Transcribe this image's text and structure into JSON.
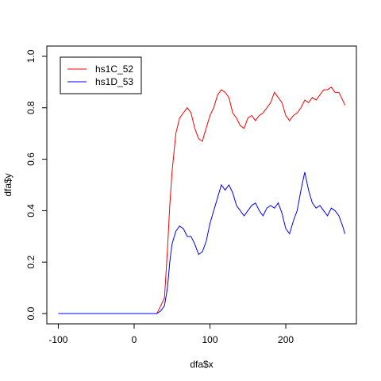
{
  "chart_data": {
    "type": "line",
    "x_label": "dfa$x",
    "y_label": "dfa$y",
    "x": [
      -100,
      30,
      35,
      40,
      44,
      47,
      50,
      55,
      60,
      65,
      70,
      75,
      80,
      85,
      90,
      95,
      100,
      105,
      110,
      115,
      120,
      125,
      130,
      135,
      140,
      145,
      150,
      155,
      160,
      165,
      170,
      175,
      180,
      185,
      190,
      195,
      200,
      205,
      210,
      215,
      220,
      225,
      230,
      235,
      240,
      245,
      250,
      255,
      260,
      265,
      270,
      275,
      278
    ],
    "series": [
      {
        "name": "hs1C_52",
        "color": "#ff0000",
        "values": [
          0,
          0,
          0.03,
          0.06,
          0.25,
          0.42,
          0.55,
          0.7,
          0.76,
          0.78,
          0.8,
          0.78,
          0.72,
          0.68,
          0.67,
          0.72,
          0.77,
          0.8,
          0.85,
          0.87,
          0.86,
          0.84,
          0.78,
          0.76,
          0.73,
          0.72,
          0.76,
          0.77,
          0.75,
          0.77,
          0.78,
          0.8,
          0.82,
          0.86,
          0.84,
          0.82,
          0.77,
          0.75,
          0.77,
          0.78,
          0.8,
          0.83,
          0.82,
          0.84,
          0.83,
          0.85,
          0.87,
          0.87,
          0.88,
          0.86,
          0.86,
          0.83,
          0.81
        ]
      },
      {
        "name": "hs1D_53",
        "color": "#0000ff",
        "values": [
          0,
          0,
          0.01,
          0.03,
          0.1,
          0.2,
          0.27,
          0.32,
          0.34,
          0.33,
          0.3,
          0.3,
          0.27,
          0.23,
          0.24,
          0.28,
          0.35,
          0.4,
          0.45,
          0.5,
          0.48,
          0.5,
          0.47,
          0.42,
          0.4,
          0.38,
          0.4,
          0.42,
          0.43,
          0.4,
          0.38,
          0.41,
          0.42,
          0.41,
          0.43,
          0.39,
          0.33,
          0.31,
          0.36,
          0.4,
          0.48,
          0.55,
          0.48,
          0.43,
          0.41,
          0.42,
          0.4,
          0.38,
          0.41,
          0.4,
          0.38,
          0.34,
          0.31
        ]
      }
    ],
    "xlim": [
      -115.12,
      293.12
    ],
    "xticks": [
      -100,
      0,
      100,
      200
    ],
    "ylim": [
      -0.04,
      1.04
    ],
    "yticks": [
      {
        "value": 0,
        "label": "0.0"
      },
      0.2,
      0.4,
      0.6,
      0.8,
      {
        "value": 1,
        "label": "1.0"
      }
    ],
    "legend": "top-left"
  }
}
